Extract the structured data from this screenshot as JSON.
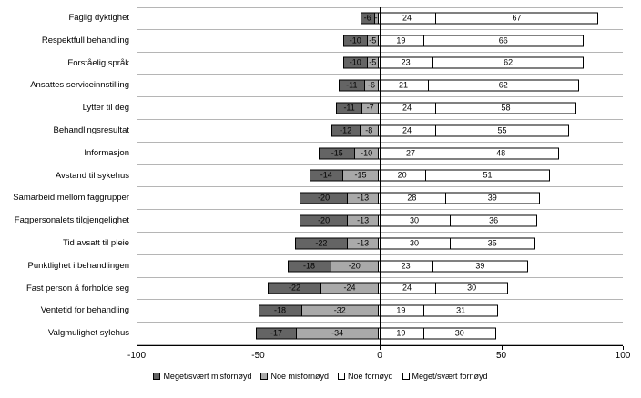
{
  "chart_data": {
    "type": "bar",
    "variant": "horizontal-diverging-stacked",
    "title": "",
    "xlabel": "",
    "ylabel": "",
    "xlim": [
      -100,
      100
    ],
    "x_ticks": [
      -100,
      -50,
      0,
      50,
      100
    ],
    "grid": "row-separators",
    "legend_position": "bottom",
    "categories": [
      "Faglig dyktighet",
      "Respektfull behandling",
      "Forståelig språk",
      "Ansattes serviceinnstilling",
      "Lytter til deg",
      "Behandlingsresultat",
      "Informasjon",
      "Avstand til sykehus",
      "Samarbeid mellom faggrupper",
      "Fagpersonalets tilgjengelighet",
      "Tid avsatt til pleie",
      "Punktlighet i behandlingen",
      "Fast person å forholde seg",
      "Ventetid for behandling",
      "Valgmulighet sylehus"
    ],
    "series": [
      {
        "name": "Meget/svært misfornøyd",
        "color": "#646464",
        "values": [
          -6,
          -10,
          -10,
          -11,
          -11,
          -12,
          -15,
          -14,
          -20,
          -20,
          -22,
          -18,
          -22,
          -18,
          -17
        ]
      },
      {
        "name": "Noe misfornøyd",
        "color": "#a9a9a9",
        "values": [
          -2,
          -5,
          -5,
          -6,
          -7,
          -8,
          -10,
          -15,
          -13,
          -13,
          -13,
          -20,
          -24,
          -32,
          -34
        ]
      },
      {
        "name": "Noe fornøyd",
        "color": "#ffffff",
        "values": [
          24,
          19,
          23,
          21,
          24,
          24,
          27,
          20,
          28,
          30,
          30,
          23,
          24,
          19,
          19
        ]
      },
      {
        "name": "Meget/svært fornøyd",
        "color": "#ffffff",
        "values": [
          67,
          66,
          62,
          62,
          58,
          55,
          48,
          51,
          39,
          36,
          35,
          39,
          30,
          31,
          30
        ]
      }
    ]
  }
}
